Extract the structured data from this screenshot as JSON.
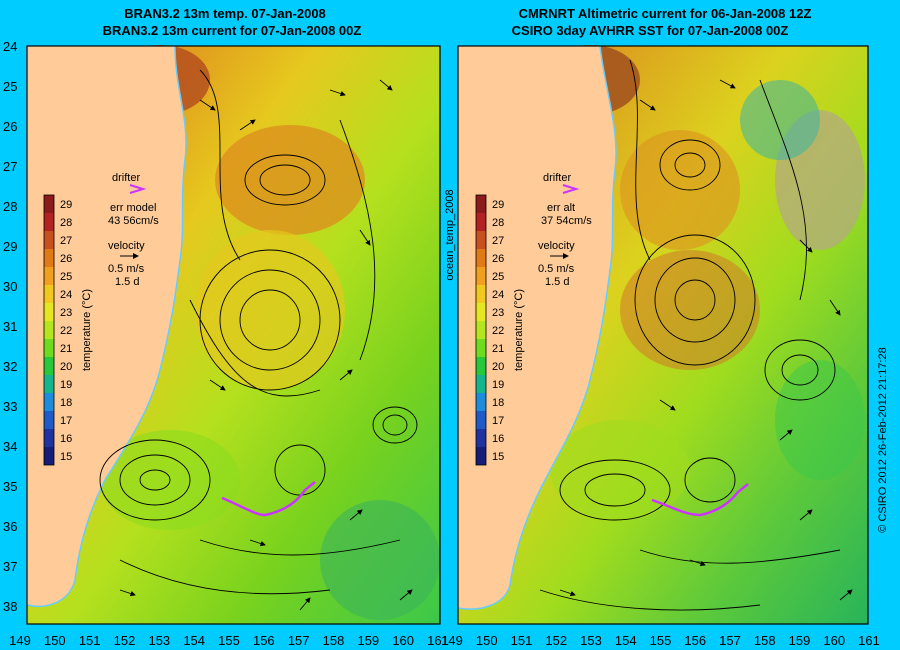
{
  "left_panel": {
    "title_line1": "BRAN3.2 13m temp. 07-Jan-2008",
    "title_line2": "BRAN3.2 13m current for 07-Jan-2008 00Z",
    "drifter_label": "drifter",
    "err_label": "err model",
    "err_value": "43 56cm/s",
    "velocity_label": "velocity",
    "velocity_scale": "0.5 m/s",
    "velocity_time": "1.5 d"
  },
  "right_panel": {
    "title_line1": "CMRNRT Altimetric current for 06-Jan-2008 12Z",
    "title_line2": "CSIRO 3day AVHRR SST for 07-Jan-2008 00Z",
    "drifter_label": "drifter",
    "err_label": "err alt",
    "err_value": "37 54cm/s",
    "velocity_label": "velocity",
    "velocity_scale": "0.5 m/s",
    "velocity_time": "1.5 d"
  },
  "colorbar": {
    "ticks": [
      "29",
      "28",
      "27",
      "26",
      "25",
      "24",
      "23",
      "22",
      "21",
      "20",
      "19",
      "18",
      "17",
      "16",
      "15"
    ],
    "label": "temperature (°C)",
    "colors": [
      "#8b1a1a",
      "#b22222",
      "#c8501e",
      "#e07a14",
      "#f0a01e",
      "#f0c81e",
      "#e6e61e",
      "#b4e61e",
      "#6edc1e",
      "#28c83c",
      "#14b48c",
      "#1e8cdc",
      "#1e5ac8",
      "#1e32a0",
      "#141e78"
    ]
  },
  "axes": {
    "lat_labels": [
      "24",
      "25",
      "26",
      "27",
      "28",
      "29",
      "30",
      "31",
      "32",
      "33",
      "34",
      "35",
      "36",
      "37",
      "38"
    ],
    "lon_labels": [
      "149",
      "150",
      "151",
      "152",
      "153",
      "154",
      "155",
      "156",
      "157",
      "158",
      "159",
      "160",
      "161"
    ]
  },
  "side_text": {
    "middle": "ocean_temp_2008",
    "credit": "© CSIRO 2012   26-Feb-2012 21:17:28"
  },
  "colors": {
    "background": "#00ccff",
    "land": "#ffcc99",
    "drifter": "#cc33ff",
    "coast": "#66ccff"
  }
}
